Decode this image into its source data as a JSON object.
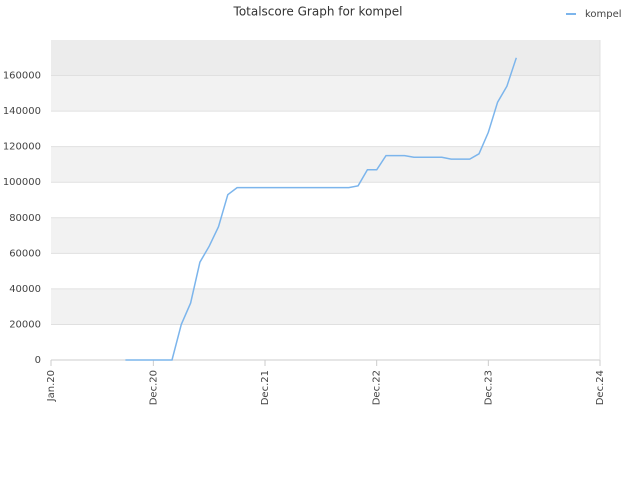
{
  "chart_data": {
    "type": "line",
    "title": "Totalscore Graph for kompel",
    "x": [
      "2020-09",
      "2020-10",
      "2020-11",
      "2020-12",
      "2021-01",
      "2021-02",
      "2021-03",
      "2021-04",
      "2021-05",
      "2021-06",
      "2021-07",
      "2021-08",
      "2021-09",
      "2021-10",
      "2021-11",
      "2021-12",
      "2022-01",
      "2022-02",
      "2022-03",
      "2022-04",
      "2022-05",
      "2022-06",
      "2022-07",
      "2022-08",
      "2022-09",
      "2022-10",
      "2022-11",
      "2022-12",
      "2023-01",
      "2023-02",
      "2023-03",
      "2023-04",
      "2023-05",
      "2023-06",
      "2023-07",
      "2023-08",
      "2023-09",
      "2023-10",
      "2023-11",
      "2023-12",
      "2024-01",
      "2024-02",
      "2024-03"
    ],
    "series": [
      {
        "name": "kompel",
        "color": "#7cb5ec",
        "values": [
          0,
          0,
          0,
          0,
          0,
          0,
          20000,
          32000,
          55000,
          64000,
          75000,
          93000,
          97000,
          97000,
          97000,
          97000,
          97000,
          97000,
          97000,
          97000,
          97000,
          97000,
          97000,
          97000,
          97000,
          98000,
          107000,
          107000,
          115000,
          115000,
          115000,
          114000,
          114000,
          114000,
          114000,
          113000,
          113000,
          113000,
          116000,
          128000,
          145000,
          154000,
          170000
        ]
      }
    ],
    "xlim": [
      "2020-01",
      "2024-12"
    ],
    "xticks": [
      {
        "value": "2020-01",
        "label": "Jan.20"
      },
      {
        "value": "2020-12",
        "label": "Dec.20"
      },
      {
        "value": "2021-12",
        "label": "Dec.21"
      },
      {
        "value": "2022-12",
        "label": "Dec.22"
      },
      {
        "value": "2023-12",
        "label": "Dec.23"
      },
      {
        "value": "2024-12",
        "label": "Dec.24"
      }
    ],
    "ylim": [
      0,
      180000
    ],
    "yticks": [
      0,
      20000,
      40000,
      60000,
      80000,
      100000,
      120000,
      140000,
      160000
    ],
    "grid": true,
    "legend": "top-right"
  }
}
